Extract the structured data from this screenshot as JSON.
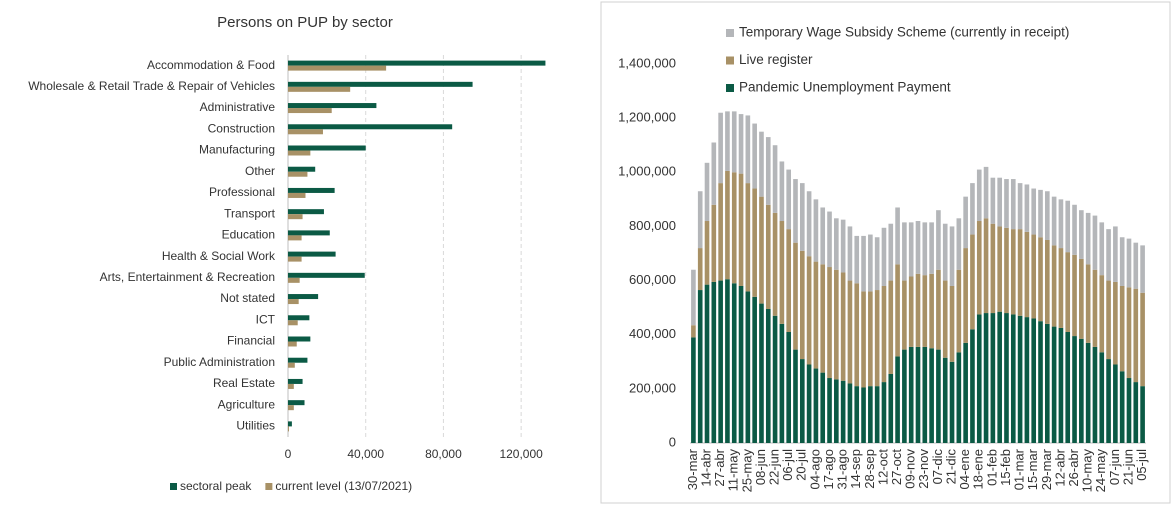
{
  "chart_data": [
    {
      "type": "hbar",
      "title": "Persons on PUP by sector",
      "categories": [
        "Accommodation & Food",
        "Wholesale & Retail Trade & Repair of Vehicles",
        "Administrative",
        "Construction",
        "Manufacturing",
        "Other",
        "Professional",
        "Transport",
        "Education",
        "Health & Social Work",
        "Arts, Entertainment & Recreation",
        "Not stated",
        "ICT",
        "Financial",
        "Public Administration",
        "Real Estate",
        "Agriculture",
        "Utilities"
      ],
      "series": [
        {
          "name": "sectoral peak",
          "color": "#0b5a45",
          "values": [
            132500,
            95000,
            45500,
            84500,
            40000,
            14000,
            24000,
            18500,
            21500,
            24500,
            39500,
            15500,
            11000,
            11500,
            10000,
            7500,
            8500,
            2000
          ]
        },
        {
          "name": "current level (13/07/2021)",
          "color": "#a89166",
          "values": [
            50500,
            32000,
            22500,
            18000,
            11500,
            10000,
            9000,
            7500,
            7000,
            7000,
            6000,
            5500,
            5000,
            4500,
            3500,
            3000,
            3000,
            500
          ]
        }
      ],
      "xlim": [
        0,
        140000
      ],
      "xticks": [
        0,
        {
          "value": 40000,
          "label": "40,000"
        },
        {
          "value": 80000,
          "label": "80,000"
        },
        {
          "value": 120000,
          "label": "120,000"
        }
      ],
      "grid": true,
      "legend": "bottom"
    },
    {
      "type": "stacked_bar",
      "categories": [
        "30-mar",
        null,
        "14-abr",
        null,
        "27-abr",
        null,
        "11-may",
        null,
        "25-may",
        null,
        "08-jun",
        null,
        "22-jun",
        null,
        "06-jul",
        null,
        "20-jul",
        null,
        "04-ago",
        null,
        "17-ago",
        null,
        "31-ago",
        null,
        "14-sep",
        null,
        "28-sep",
        null,
        "12-oct",
        null,
        "27-oct",
        null,
        "09-nov",
        null,
        "23-nov",
        null,
        "07-dic",
        null,
        "21-dic",
        null,
        "04-ene",
        null,
        "18-ene",
        null,
        "01-feb",
        null,
        "15-feb",
        null,
        "01-mar",
        null,
        "15-mar",
        null,
        "29-mar",
        null,
        "12-abr",
        null,
        "26-abr",
        null,
        "10-may",
        null,
        "24-may",
        null,
        "07-jun",
        null,
        "21-jun",
        null,
        "05-jul"
      ],
      "series": [
        {
          "name": "Pandemic Unemployment Payment",
          "color": "#0b5a45",
          "values": [
            390000,
            565000,
            585000,
            595000,
            600000,
            605000,
            590000,
            580000,
            560000,
            540000,
            515000,
            495000,
            470000,
            440000,
            410000,
            345000,
            310000,
            290000,
            275000,
            260000,
            240000,
            235000,
            230000,
            220000,
            210000,
            205000,
            210000,
            210000,
            225000,
            255000,
            320000,
            345000,
            355000,
            355000,
            355000,
            350000,
            345000,
            315000,
            300000,
            335000,
            370000,
            420000,
            475000,
            480000,
            480000,
            485000,
            480000,
            475000,
            470000,
            465000,
            460000,
            450000,
            440000,
            430000,
            425000,
            410000,
            395000,
            385000,
            370000,
            355000,
            335000,
            310000,
            290000,
            265000,
            240000,
            225000,
            210000
          ]
        },
        {
          "name": "Live register",
          "color": "#a89166",
          "values": [
            45000,
            155000,
            235000,
            285000,
            360000,
            400000,
            410000,
            415000,
            400000,
            400000,
            395000,
            385000,
            380000,
            380000,
            380000,
            395000,
            400000,
            400000,
            395000,
            400000,
            410000,
            405000,
            400000,
            380000,
            380000,
            355000,
            350000,
            355000,
            355000,
            345000,
            340000,
            255000,
            260000,
            270000,
            265000,
            275000,
            295000,
            285000,
            280000,
            305000,
            350000,
            350000,
            345000,
            350000,
            330000,
            315000,
            315000,
            315000,
            320000,
            315000,
            310000,
            310000,
            310000,
            300000,
            295000,
            295000,
            300000,
            295000,
            290000,
            285000,
            285000,
            290000,
            305000,
            315000,
            335000,
            345000,
            345000
          ]
        },
        {
          "name": "Temporary Wage Subsidy Scheme (currently in receipt)",
          "color": "#b4b6b9",
          "values": [
            205000,
            210000,
            215000,
            230000,
            260000,
            220000,
            225000,
            220000,
            250000,
            240000,
            240000,
            250000,
            250000,
            220000,
            220000,
            235000,
            250000,
            240000,
            230000,
            210000,
            205000,
            190000,
            195000,
            200000,
            175000,
            205000,
            210000,
            195000,
            215000,
            210000,
            210000,
            215000,
            200000,
            195000,
            195000,
            190000,
            220000,
            210000,
            220000,
            190000,
            190000,
            190000,
            190000,
            190000,
            170000,
            180000,
            180000,
            185000,
            170000,
            175000,
            170000,
            175000,
            180000,
            180000,
            180000,
            190000,
            185000,
            180000,
            190000,
            200000,
            195000,
            190000,
            205000,
            180000,
            180000,
            170000,
            175000
          ]
        }
      ],
      "ylim": [
        0,
        1400000
      ],
      "yticks": [
        0,
        {
          "value": 200000,
          "label": "200,000"
        },
        {
          "value": 400000,
          "label": "400,000"
        },
        {
          "value": 600000,
          "label": "600,000"
        },
        {
          "value": 800000,
          "label": "800,000"
        },
        {
          "value": 1000000,
          "label": "1,000,000"
        },
        {
          "value": 1200000,
          "label": "1,200,000"
        },
        {
          "value": 1400000,
          "label": "1,400,000"
        }
      ],
      "grid": false,
      "legend": "top-left"
    }
  ]
}
